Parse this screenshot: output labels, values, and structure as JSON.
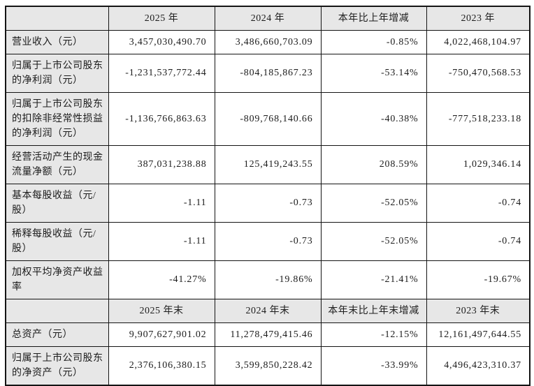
{
  "colors": {
    "header_bg": "#e7e7e7",
    "border": "#141414",
    "text": "#1c1c1c",
    "page_bg": "#ffffff"
  },
  "table": {
    "header_year": {
      "label": "",
      "y2025": "2025 年",
      "y2024": "2024 年",
      "change": "本年比上年增减",
      "y2023": "2023 年"
    },
    "rows_year": [
      {
        "label": "营业收入（元）",
        "v2025": "3,457,030,490.70",
        "v2024": "3,486,660,703.09",
        "change": "-0.85%",
        "v2023": "4,022,468,104.97"
      },
      {
        "label": "归属于上市公司股东的净利润（元）",
        "v2025": "-1,231,537,772.44",
        "v2024": "-804,185,867.23",
        "change": "-53.14%",
        "v2023": "-750,470,568.53"
      },
      {
        "label": "归属于上市公司股东的扣除非经常性损益的净利润（元）",
        "v2025": "-1,136,766,863.63",
        "v2024": "-809,768,140.66",
        "change": "-40.38%",
        "v2023": "-777,518,233.18"
      },
      {
        "label": "经营活动产生的现金流量净额（元）",
        "v2025": "387,031,238.88",
        "v2024": "125,419,243.55",
        "change": "208.59%",
        "v2023": "1,029,346.14"
      },
      {
        "label": "基本每股收益（元/股）",
        "v2025": "-1.11",
        "v2024": "-0.73",
        "change": "-52.05%",
        "v2023": "-0.74"
      },
      {
        "label": "稀释每股收益（元/股）",
        "v2025": "-1.11",
        "v2024": "-0.73",
        "change": "-52.05%",
        "v2023": "-0.74"
      },
      {
        "label": "加权平均净资产收益率",
        "v2025": "-41.27%",
        "v2024": "-19.86%",
        "change": "-21.41%",
        "v2023": "-19.67%"
      }
    ],
    "header_yearend": {
      "label": "",
      "y2025": "2025 年末",
      "y2024": "2024 年末",
      "change": "本年末比上年末增减",
      "y2023": "2023 年末"
    },
    "rows_yearend": [
      {
        "label": "总资产（元）",
        "v2025": "9,907,627,901.02",
        "v2024": "11,278,479,415.46",
        "change": "-12.15%",
        "v2023": "12,161,497,644.55"
      },
      {
        "label": "归属于上市公司股东的净资产（元）",
        "v2025": "2,376,106,380.15",
        "v2024": "3,599,850,228.42",
        "change": "-33.99%",
        "v2023": "4,496,423,310.37"
      }
    ]
  }
}
